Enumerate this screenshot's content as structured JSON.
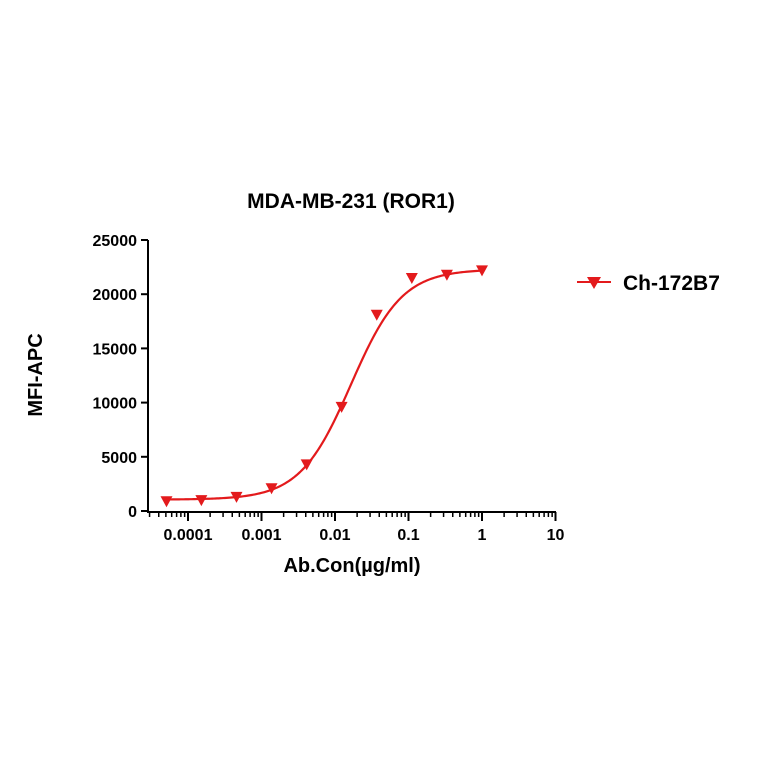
{
  "chart_data": {
    "type": "scatter",
    "title": "MDA-MB-231 (ROR1)",
    "xlabel": "Ab.Con(µg/ml)",
    "ylabel": "MFI-APC",
    "x_scale": "log",
    "xlim": [
      3e-05,
      10
    ],
    "ylim": [
      0,
      25000
    ],
    "x_ticks": [
      0.0001,
      0.001,
      0.01,
      0.1,
      1,
      10
    ],
    "x_tick_labels": [
      "0.0001",
      "0.001",
      "0.01",
      "0.1",
      "1",
      "10"
    ],
    "y_ticks": [
      0,
      5000,
      10000,
      15000,
      20000,
      25000
    ],
    "y_tick_labels": [
      "0",
      "5000",
      "10000",
      "15000",
      "20000",
      "25000"
    ],
    "grid": false,
    "legend_position": "right",
    "series": [
      {
        "name": "Ch-172B7",
        "color": "#e31a1c",
        "marker": "triangle-down",
        "x": [
          5.1e-05,
          0.000152,
          0.000457,
          0.00137,
          0.00412,
          0.0123,
          0.037,
          0.111,
          0.333,
          1.0
        ],
        "y": [
          900,
          1000,
          1300,
          2100,
          4300,
          9600,
          18100,
          21500,
          21800,
          22200
        ],
        "fit": {
          "model": "4PL",
          "bottom": 1050,
          "top": 22300,
          "ec50": 0.0165,
          "hill": 1.25,
          "x_range": [
            5.1e-05,
            1.0
          ]
        }
      }
    ]
  }
}
